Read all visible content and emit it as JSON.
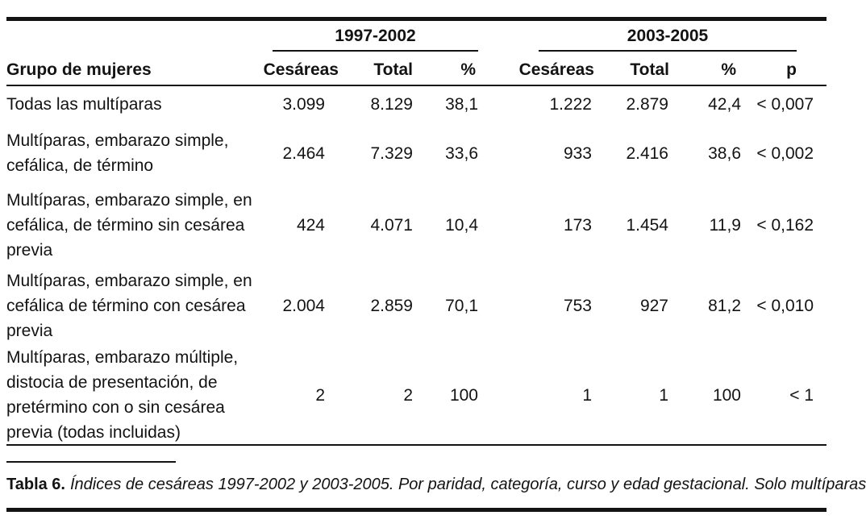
{
  "table": {
    "group_headers": [
      {
        "label": "1997-2002"
      },
      {
        "label": "2003-2005"
      }
    ],
    "columns": {
      "group_label": "Grupo de mujeres",
      "cesareas": "Cesáreas",
      "total": "Total",
      "pct": "%",
      "p": "p"
    },
    "rows": [
      {
        "label": "Todas las multíparas",
        "c1": "3.099",
        "t1": "8.129",
        "pct1": "38,1",
        "c2": "1.222",
        "t2": "2.879",
        "pct2": "42,4",
        "p": "< 0,007"
      },
      {
        "label": "Multíparas, embarazo simple, cefálica, de término",
        "c1": "2.464",
        "t1": "7.329",
        "pct1": "33,6",
        "c2": "933",
        "t2": "2.416",
        "pct2": "38,6",
        "p": "< 0,002"
      },
      {
        "label": "Multíparas, embarazo simple, en cefálica, de término sin cesárea previa",
        "c1": "424",
        "t1": "4.071",
        "pct1": "10,4",
        "c2": "173",
        "t2": "1.454",
        "pct2": "11,9",
        "p": "< 0,162"
      },
      {
        "label": "Multíparas, embarazo simple, en cefálica de término con cesárea previa",
        "c1": "2.004",
        "t1": "2.859",
        "pct1": "70,1",
        "c2": "753",
        "t2": "927",
        "pct2": "81,2",
        "p": "< 0,010"
      },
      {
        "label": "Multíparas, embarazo múltiple, distocia de presentación, de pretérmino con o sin cesárea previa (todas incluidas)",
        "c1": "2",
        "t1": "2",
        "pct1": "100",
        "c2": "1",
        "t2": "1",
        "pct2": "100",
        "p": "< 1"
      }
    ]
  },
  "caption": {
    "label": "Tabla 6.",
    "text": "Índices de cesáreas 1997-2002 y 2003-2005. Por paridad, categoría, curso y edad gestacional. Solo multíparas"
  }
}
